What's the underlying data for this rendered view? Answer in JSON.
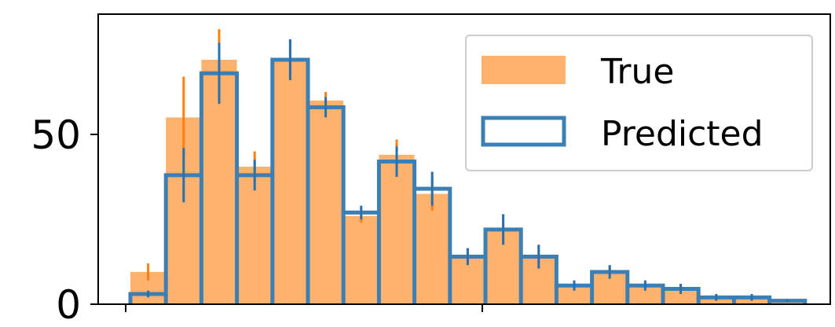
{
  "chart_data": {
    "type": "bar",
    "title": "",
    "xlabel": "",
    "ylabel": "",
    "ylim": [
      0,
      78
    ],
    "yticks": [
      0,
      50
    ],
    "ytick_labels": [
      "0",
      "50"
    ],
    "legend_position": "top-right",
    "grid": false,
    "series": [
      {
        "name": "True",
        "style": "filled",
        "color": "#ffb26e",
        "err_color": "#ff7f0e",
        "values": [
          9.5,
          55,
          72,
          40.5,
          72,
          60,
          26,
          44,
          32.5,
          14,
          22,
          14,
          5.5,
          9.5,
          5.5,
          5,
          2,
          2,
          1
        ],
        "errors": [
          2.5,
          12,
          9,
          4.5,
          6,
          2.5,
          2,
          4.5,
          5,
          2.5,
          4.5,
          3.5,
          1.5,
          2,
          1.5,
          1,
          1,
          0.5,
          0.5
        ]
      },
      {
        "name": "Predicted",
        "style": "outline",
        "color": "#3b7fb5",
        "err_color": "#2671b2",
        "values": [
          3,
          38,
          68,
          38,
          72,
          58,
          27,
          42,
          34,
          14,
          22,
          14,
          5.5,
          9.5,
          5.5,
          4.5,
          2,
          2,
          1
        ],
        "errors": [
          1,
          8,
          9,
          4.5,
          6,
          3,
          2,
          4.5,
          5,
          2.5,
          4.5,
          3.5,
          1.5,
          2,
          1.5,
          1.5,
          1,
          1,
          0.5
        ]
      }
    ]
  }
}
